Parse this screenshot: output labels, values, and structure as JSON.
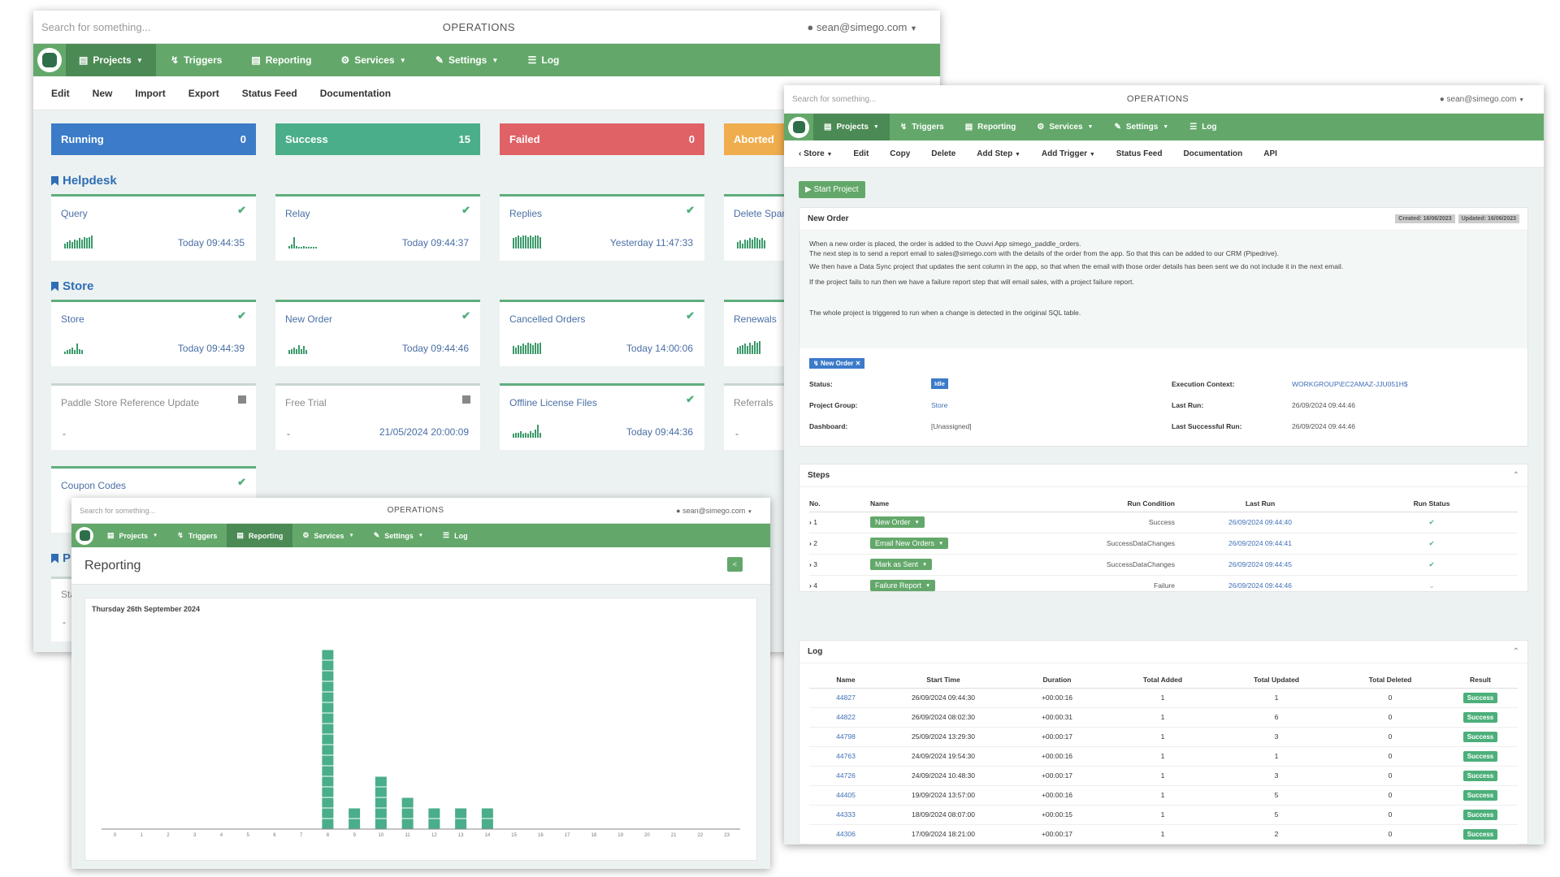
{
  "colors": {
    "nav_green": "#63a86a",
    "running": "#3b7bc8",
    "success": "#4aae8a",
    "failed": "#e06266",
    "aborted": "#f0ad4e",
    "bar": "#4aae8a"
  },
  "window1": {
    "search_placeholder": "Search for something...",
    "brand": "OPERATIONS",
    "user": "sean@simego.com",
    "nav": [
      "Projects",
      "Triggers",
      "Reporting",
      "Services",
      "Settings",
      "Log"
    ],
    "toolbar": [
      "Edit",
      "New",
      "Import",
      "Export",
      "Status Feed",
      "Documentation"
    ],
    "status": [
      {
        "label": "Running",
        "count": "0"
      },
      {
        "label": "Success",
        "count": "15"
      },
      {
        "label": "Failed",
        "count": "0"
      },
      {
        "label": "Aborted"
      }
    ],
    "groups": [
      {
        "title": "Helpdesk"
      },
      {
        "title": "Store"
      },
      {
        "title": "Pr"
      }
    ],
    "cards": [
      {
        "name": "Query",
        "time": "Today 09:44:35",
        "state": "ok",
        "spark": [
          4,
          5,
          6,
          5,
          7,
          6,
          8,
          7,
          9,
          8,
          9,
          10
        ]
      },
      {
        "name": "Relay",
        "time": "Today 09:44:37",
        "state": "ok",
        "spark": [
          2,
          3,
          9,
          2,
          1,
          1,
          2,
          1,
          1,
          1,
          1,
          1
        ]
      },
      {
        "name": "Replies",
        "time": "Yesterday 11:47:33",
        "state": "ok",
        "spark": [
          8,
          9,
          10,
          9,
          10,
          10,
          9,
          10,
          9,
          10,
          10,
          9
        ]
      },
      {
        "name": "Delete Spam",
        "time": "",
        "state": "ok",
        "spark": [
          5,
          6,
          4,
          7,
          6,
          8,
          7,
          9,
          8,
          7,
          8,
          6
        ]
      },
      {
        "name": "Store",
        "time": "Today 09:44:39",
        "state": "ok",
        "spark": [
          2,
          3,
          4,
          5,
          3,
          8,
          4,
          3
        ]
      },
      {
        "name": "New Order",
        "time": "Today 09:44:46",
        "state": "ok",
        "spark": [
          3,
          4,
          5,
          4,
          7,
          4,
          6,
          3
        ]
      },
      {
        "name": "Cancelled Orders",
        "time": "Today 14:00:06",
        "state": "ok",
        "spark": [
          6,
          5,
          7,
          6,
          8,
          7,
          9,
          8,
          7,
          9,
          8,
          9
        ]
      },
      {
        "name": "Renewals",
        "time": "",
        "state": "ok",
        "spark": [
          5,
          6,
          7,
          8,
          6,
          9,
          7,
          10,
          9,
          10
        ]
      },
      {
        "name": "Paddle Store Reference Update",
        "time": "",
        "dash": "-",
        "state": "stopped"
      },
      {
        "name": "Free Trial",
        "time": "21/05/2024 20:00:09",
        "dash": "-",
        "state": "stopped"
      },
      {
        "name": "Offline License Files",
        "time": "Today 09:44:36",
        "state": "ok",
        "spark": [
          3,
          4,
          4,
          5,
          3,
          4,
          3,
          5,
          4,
          6,
          10,
          4
        ]
      },
      {
        "name": "Referrals",
        "time": "",
        "dash": "-",
        "state": "grey"
      },
      {
        "name": "Coupon Codes",
        "time": "",
        "state": "ok",
        "spark": []
      }
    ],
    "partial_row": {
      "label": "Sta",
      "dash": "-"
    }
  },
  "window2": {
    "search_placeholder": "Search for something...",
    "brand": "OPERATIONS",
    "user": "sean@simego.com",
    "nav": [
      "Projects",
      "Triggers",
      "Reporting",
      "Services",
      "Settings",
      "Log"
    ],
    "page_title": "Reporting",
    "back_button": "<",
    "chart_data": {
      "type": "bar",
      "title": "Thursday 26th September 2024",
      "categories": [
        "0",
        "1",
        "2",
        "3",
        "4",
        "5",
        "6",
        "7",
        "8",
        "9",
        "10",
        "11",
        "12",
        "13",
        "14",
        "15",
        "16",
        "17",
        "18",
        "19",
        "20",
        "21",
        "22",
        "23"
      ],
      "values": [
        0,
        0,
        0,
        0,
        0,
        0,
        0,
        0,
        17,
        2,
        5,
        3,
        2,
        2,
        2,
        0,
        0,
        0,
        0,
        0,
        0,
        0,
        0,
        0
      ],
      "ylim": [
        0,
        18
      ],
      "grid": false
    }
  },
  "window3": {
    "search_placeholder": "Search for something...",
    "brand": "OPERATIONS",
    "user": "sean@simego.com",
    "nav": [
      "Projects",
      "Triggers",
      "Reporting",
      "Services",
      "Settings",
      "Log"
    ],
    "toolbar": [
      "Store",
      "Edit",
      "Copy",
      "Delete",
      "Add Step",
      "Add Trigger",
      "Status Feed",
      "Documentation",
      "API"
    ],
    "start_button": "Start Project",
    "project_title": "New Order",
    "created": "Created: 16/06/2023",
    "updated": "Updated: 16/06/2023",
    "description": [
      "When a new order is placed, the order is added to the Ouvvi App simego_paddle_orders.",
      "The next step is to send a report email to sales@simego.com with the details of the order from the app. So that this can be added to our CRM (Pipedrive).",
      "We then have a Data Sync project that updates the sent column in the app, so that when the email with those order details has been sent we do not include it in the next email.",
      "If the project fails to run then we have a failure report step that will email sales, with a project failure report.",
      "The whole project is triggered to run when a change is detected in the original SQL table."
    ],
    "trigger_tag": "New Order",
    "details": {
      "status_label": "Status:",
      "status_value": "Idle",
      "group_label": "Project Group:",
      "group_value": "Store",
      "dashboard_label": "Dashboard:",
      "dashboard_value": "[Unassigned]",
      "context_label": "Execution Context:",
      "context_value": "WORKGROUP\\EC2AMAZ-JJU051H$",
      "lastrun_label": "Last Run:",
      "lastrun_value": "26/09/2024 09:44:46",
      "lastsuccess_label": "Last Successful Run:",
      "lastsuccess_value": "26/09/2024 09:44:46"
    },
    "steps_title": "Steps",
    "steps_headers": [
      "No.",
      "Name",
      "Run Condition",
      "Last Run",
      "Run Status"
    ],
    "steps": [
      {
        "no": "1",
        "name": "New Order",
        "condition": "Success",
        "last_run": "26/09/2024 09:44:40",
        "status": "ok"
      },
      {
        "no": "2",
        "name": "Email New Orders",
        "condition": "SuccessDataChanges",
        "last_run": "26/09/2024 09:44:41",
        "status": "ok"
      },
      {
        "no": "3",
        "name": "Mark as Sent",
        "condition": "SuccessDataChanges",
        "last_run": "26/09/2024 09:44:45",
        "status": "ok"
      },
      {
        "no": "4",
        "name": "Failure Report",
        "condition": "Failure",
        "last_run": "26/09/2024 09:44:46",
        "status": "skip"
      }
    ],
    "log_title": "Log",
    "log_headers": [
      "Name",
      "Start Time",
      "Duration",
      "Total Added",
      "Total Updated",
      "Total Deleted",
      "Result"
    ],
    "log": [
      {
        "name": "44827",
        "start": "26/09/2024 09:44:30",
        "duration": "+00:00:16",
        "added": "1",
        "updated": "1",
        "deleted": "0",
        "result": "Success"
      },
      {
        "name": "44822",
        "start": "26/09/2024 08:02:30",
        "duration": "+00:00:31",
        "added": "1",
        "updated": "6",
        "deleted": "0",
        "result": "Success"
      },
      {
        "name": "44798",
        "start": "25/09/2024 13:29:30",
        "duration": "+00:00:17",
        "added": "1",
        "updated": "3",
        "deleted": "0",
        "result": "Success"
      },
      {
        "name": "44763",
        "start": "24/09/2024 19:54:30",
        "duration": "+00:00:16",
        "added": "1",
        "updated": "1",
        "deleted": "0",
        "result": "Success"
      },
      {
        "name": "44726",
        "start": "24/09/2024 10:48:30",
        "duration": "+00:00:17",
        "added": "1",
        "updated": "3",
        "deleted": "0",
        "result": "Success"
      },
      {
        "name": "44405",
        "start": "19/09/2024 13:57:00",
        "duration": "+00:00:16",
        "added": "1",
        "updated": "5",
        "deleted": "0",
        "result": "Success"
      },
      {
        "name": "44333",
        "start": "18/09/2024 08:07:00",
        "duration": "+00:00:15",
        "added": "1",
        "updated": "5",
        "deleted": "0",
        "result": "Success"
      },
      {
        "name": "44306",
        "start": "17/09/2024 18:21:00",
        "duration": "+00:00:17",
        "added": "1",
        "updated": "2",
        "deleted": "0",
        "result": "Success"
      }
    ]
  }
}
